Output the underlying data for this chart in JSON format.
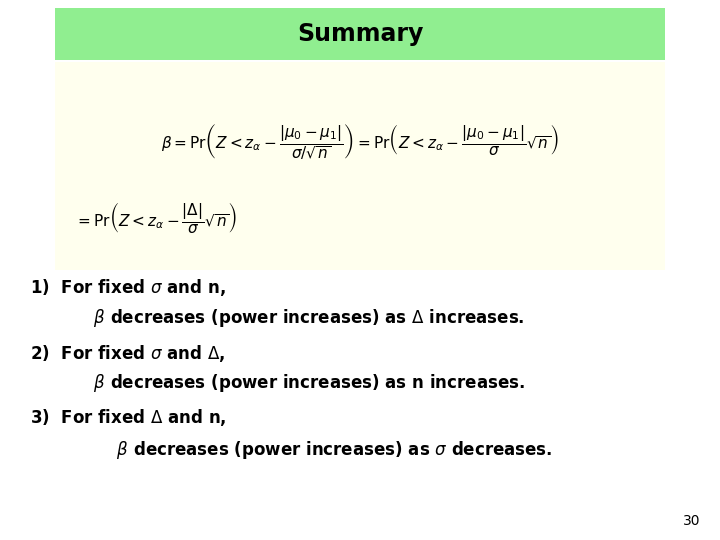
{
  "title": "Summary",
  "title_bg_color": "#90EE90",
  "slide_bg_color": "#FFFFFF",
  "formula_bg_color": "#FFFFEE",
  "title_fontsize": 17,
  "formula_fontsize": 11,
  "text_fontsize": 12,
  "page_number": "30",
  "formula1": "$\\beta = \\mathrm{Pr}\\left( Z < z_{\\alpha} - \\dfrac{|\\mu_0 - \\mu_1|}{\\sigma/\\sqrt{n}} \\right) = \\mathrm{Pr}\\left( Z < z_{\\alpha} - \\dfrac{|\\mu_0 - \\mu_1|}{\\sigma}\\sqrt{n} \\right)$",
  "formula2": "$= \\mathrm{Pr}\\left( Z < z_{\\alpha} - \\dfrac{|\\Delta|}{\\sigma}\\sqrt{n} \\right)$",
  "line1a": "1)  For fixed $\\sigma$ and n,",
  "line1b": "           $\\beta$ decreases (power increases) as $\\Delta$ increases.",
  "line2a": "2)  For fixed $\\sigma$ and $\\Delta$,",
  "line2b": "           $\\beta$ decreases (power increases) as n increases.",
  "line3a": "3)  For fixed $\\Delta$ and n,",
  "line3b": "               $\\beta$ decreases (power increases) as $\\sigma$ decreases."
}
